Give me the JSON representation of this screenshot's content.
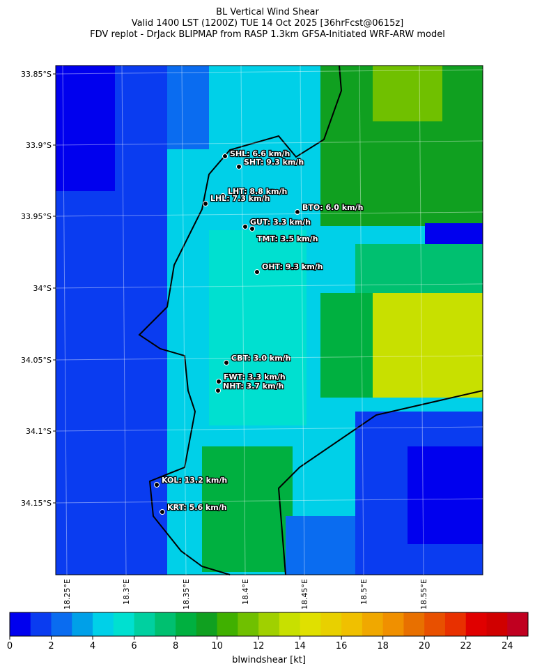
{
  "title": [
    "BL Vertical Wind Shear",
    "Valid 1400 LST (1200Z) TUE 14 Oct 2025 [36hrFcst@0615z]",
    "FDV replot - DrJack BLIPMAP from RASP 1.3km GFSA-Initiated WRF-ARW model"
  ],
  "map": {
    "lat_ticks": [
      "33.85°S",
      "33.9°S",
      "33.95°S",
      "34°S",
      "34.05°S",
      "34.1°S",
      "34.15°S"
    ],
    "lon_ticks": [
      "18.25°E",
      "18.3°E",
      "18.35°E",
      "18.4°E",
      "18.45°E",
      "18.5°E",
      "18.55°E"
    ],
    "stations": [
      "SHL: 6.6 km/h",
      "SHT: 9.3 km/h",
      "LHT: 8.8 km/h",
      "LHL: 7.3 km/h",
      "BTO: 6.0 km/h",
      "GUT: 3.3 km/h",
      "TMT: 3.5 km/h",
      "OHT: 9.3 km/h",
      "CBT: 3.0 km/h",
      "FWT: 3.3 km/h",
      "NHT: 3.7 km/h",
      "KOL: 13.2 km/h",
      "KRT: 5.6 km/h"
    ]
  },
  "colorbar": {
    "label": "blwindshear [kt]",
    "lim": [
      0,
      25
    ],
    "ticks": [
      0,
      2,
      4,
      6,
      8,
      10,
      12,
      14,
      16,
      18,
      20,
      22,
      24
    ],
    "colors": [
      "#0000ee",
      "#0a3cf0",
      "#0a6cf0",
      "#00a0e8",
      "#00d0e8",
      "#00e0d0",
      "#00d0a0",
      "#00c070",
      "#00b040",
      "#10a020",
      "#40b000",
      "#70c000",
      "#a0d000",
      "#c8e000",
      "#e0e000",
      "#e8d000",
      "#f0c000",
      "#f0a800",
      "#f09000",
      "#e87000",
      "#e85000",
      "#e83000",
      "#e00000",
      "#d00000",
      "#c00020"
    ]
  }
}
